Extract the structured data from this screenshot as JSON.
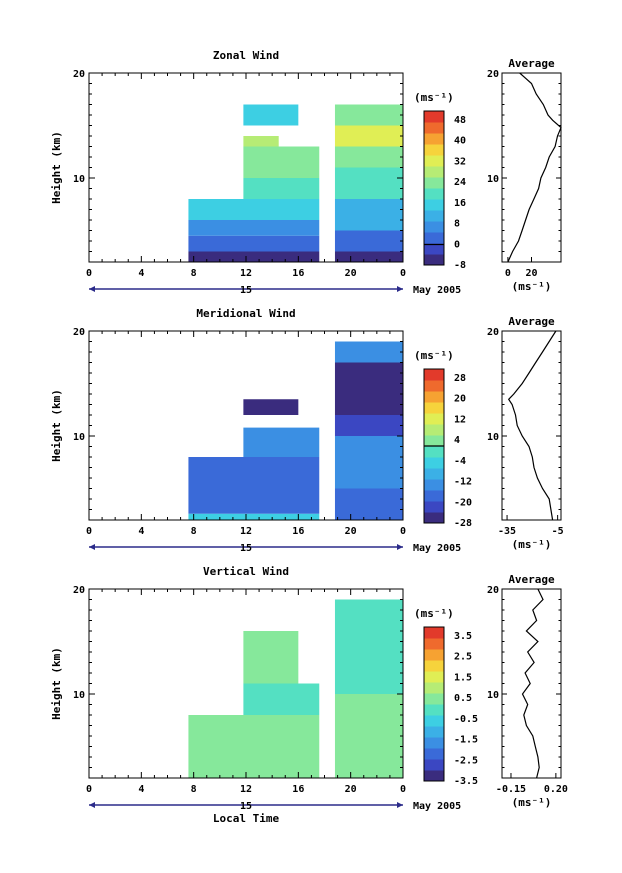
{
  "figure": {
    "xlabel": "Local Time",
    "date_label": "May 2005",
    "day_label": "15",
    "ylabel": "Height (km)",
    "unit_label": "(ms⁻¹)"
  },
  "colormap": [
    "#3a2c7e",
    "#3b47c2",
    "#3a6ad8",
    "#3b8fe3",
    "#3bb0e6",
    "#3dcfe3",
    "#54e0c2",
    "#86e89b",
    "#b6ec75",
    "#e0ee55",
    "#f6d33c",
    "#f6a232",
    "#ef6a2d",
    "#e23a2b"
  ],
  "chart_data": [
    {
      "type": "heatmap",
      "id": "zonal",
      "title": "Zonal Wind",
      "x_ticks": [
        "0",
        "4",
        "8",
        "12",
        "16",
        "20",
        "0"
      ],
      "x_tick_values": [
        0,
        4,
        8,
        12,
        16,
        20,
        24
      ],
      "y_ticks": [
        "20",
        "10"
      ],
      "y_tick_values": [
        20,
        10
      ],
      "ylim": [
        2,
        20
      ],
      "xlim": [
        0,
        24
      ],
      "colorbar_labels": [
        "48",
        "40",
        "32",
        "24",
        "16",
        "8",
        "0",
        "-8"
      ],
      "colorbar_range": [
        -8,
        52
      ],
      "zero_marker": true,
      "avg_title": "Average",
      "avg_xticks": [
        "0",
        "20"
      ],
      "avg_xtick_values": [
        0,
        20
      ],
      "avg_xlim": [
        -5,
        45
      ],
      "avg_profile": [
        [
          2,
          0
        ],
        [
          3,
          4
        ],
        [
          4,
          9
        ],
        [
          5,
          12
        ],
        [
          6,
          15
        ],
        [
          7,
          18
        ],
        [
          8,
          22
        ],
        [
          9,
          26
        ],
        [
          10,
          28
        ],
        [
          11,
          32
        ],
        [
          12,
          35
        ],
        [
          13,
          40
        ],
        [
          14,
          42
        ],
        [
          14.8,
          45
        ],
        [
          15.5,
          38
        ],
        [
          16,
          34
        ],
        [
          17,
          30
        ],
        [
          18,
          24
        ],
        [
          19,
          20
        ],
        [
          19.6,
          14
        ],
        [
          20,
          10
        ]
      ],
      "layers": [
        {
          "x": [
            7.6,
            17.6
          ],
          "y": [
            2,
            3
          ],
          "v": -6
        },
        {
          "x": [
            7.6,
            17.6
          ],
          "y": [
            3,
            4.5
          ],
          "v": 2
        },
        {
          "x": [
            7.6,
            17.6
          ],
          "y": [
            4.5,
            6
          ],
          "v": 8
        },
        {
          "x": [
            7.6,
            17.6
          ],
          "y": [
            6,
            8
          ],
          "v": 14
        },
        {
          "x": [
            11.8,
            17.6
          ],
          "y": [
            8,
            10
          ],
          "v": 18
        },
        {
          "x": [
            11.8,
            17.6
          ],
          "y": [
            10,
            13
          ],
          "v": 22
        },
        {
          "x": [
            11.8,
            14.5
          ],
          "y": [
            13,
            14
          ],
          "v": 30
        },
        {
          "x": [
            11.8,
            16.0
          ],
          "y": [
            15,
            17
          ],
          "v": 16
        },
        {
          "x": [
            18.8,
            24
          ],
          "y": [
            2,
            3
          ],
          "v": -6
        },
        {
          "x": [
            18.8,
            24
          ],
          "y": [
            3,
            5
          ],
          "v": 4
        },
        {
          "x": [
            18.8,
            24
          ],
          "y": [
            5,
            8
          ],
          "v": 10
        },
        {
          "x": [
            18.8,
            24
          ],
          "y": [
            8,
            11
          ],
          "v": 18
        },
        {
          "x": [
            18.8,
            24
          ],
          "y": [
            11,
            13
          ],
          "v": 26
        },
        {
          "x": [
            18.8,
            24
          ],
          "y": [
            13,
            15
          ],
          "v": 34
        },
        {
          "x": [
            18.8,
            24
          ],
          "y": [
            15,
            17
          ],
          "v": 24
        }
      ]
    },
    {
      "type": "heatmap",
      "id": "meridional",
      "title": "Meridional Wind",
      "x_ticks": [
        "0",
        "4",
        "8",
        "12",
        "16",
        "20",
        "0"
      ],
      "x_tick_values": [
        0,
        4,
        8,
        12,
        16,
        20,
        24
      ],
      "y_ticks": [
        "20",
        "10"
      ],
      "y_tick_values": [
        20,
        10
      ],
      "ylim": [
        2,
        20
      ],
      "xlim": [
        0,
        24
      ],
      "colorbar_labels": [
        "28",
        "20",
        "12",
        "4",
        "-4",
        "-12",
        "-20",
        "-28"
      ],
      "colorbar_range": [
        -32,
        32
      ],
      "zero_marker": true,
      "avg_title": "Average",
      "avg_xticks": [
        "-35",
        "-5"
      ],
      "avg_xtick_values": [
        -35,
        -5
      ],
      "avg_xlim": [
        -38,
        -3
      ],
      "avg_profile": [
        [
          2,
          -8
        ],
        [
          3,
          -9
        ],
        [
          4,
          -10
        ],
        [
          5,
          -14
        ],
        [
          6,
          -17
        ],
        [
          7,
          -19
        ],
        [
          8,
          -20
        ],
        [
          9,
          -22
        ],
        [
          10,
          -26
        ],
        [
          11,
          -29
        ],
        [
          12,
          -30
        ],
        [
          13,
          -32
        ],
        [
          13.5,
          -34
        ],
        [
          14,
          -31
        ],
        [
          15,
          -26
        ],
        [
          16,
          -22
        ],
        [
          17,
          -18
        ],
        [
          18,
          -14
        ],
        [
          19,
          -10
        ],
        [
          20,
          -6
        ]
      ],
      "layers": [
        {
          "x": [
            7.6,
            17.6
          ],
          "y": [
            2,
            2.6
          ],
          "v": -8
        },
        {
          "x": [
            7.6,
            17.6
          ],
          "y": [
            2.6,
            5
          ],
          "v": -20
        },
        {
          "x": [
            7.6,
            17.6
          ],
          "y": [
            5,
            8
          ],
          "v": -22
        },
        {
          "x": [
            11.8,
            17.6
          ],
          "y": [
            8,
            10.8
          ],
          "v": -18
        },
        {
          "x": [
            11.8,
            16.0
          ],
          "y": [
            12,
            13.5
          ],
          "v": -30
        },
        {
          "x": [
            18.8,
            24
          ],
          "y": [
            2,
            5
          ],
          "v": -22
        },
        {
          "x": [
            18.8,
            24
          ],
          "y": [
            5,
            10
          ],
          "v": -18
        },
        {
          "x": [
            18.8,
            24
          ],
          "y": [
            10,
            12
          ],
          "v": -24
        },
        {
          "x": [
            18.8,
            24
          ],
          "y": [
            12,
            14
          ],
          "v": -28
        },
        {
          "x": [
            18.8,
            24
          ],
          "y": [
            14,
            17
          ],
          "v": -30
        },
        {
          "x": [
            18.8,
            24
          ],
          "y": [
            17,
            19
          ],
          "v": -14
        }
      ]
    },
    {
      "type": "heatmap",
      "id": "vertical",
      "title": "Vertical Wind",
      "x_ticks": [
        "0",
        "4",
        "8",
        "12",
        "16",
        "20",
        "0"
      ],
      "x_tick_values": [
        0,
        4,
        8,
        12,
        16,
        20,
        24
      ],
      "y_ticks": [
        "20",
        "10"
      ],
      "y_tick_values": [
        20,
        10
      ],
      "ylim": [
        2,
        20
      ],
      "xlim": [
        0,
        24
      ],
      "colorbar_labels": [
        "3.5",
        "2.5",
        "1.5",
        "0.5",
        "-0.5",
        "-1.5",
        "-2.5",
        "-3.5"
      ],
      "colorbar_range": [
        -4,
        4
      ],
      "zero_marker": false,
      "avg_title": "Average",
      "avg_xticks": [
        "-0.15",
        "0.20"
      ],
      "avg_xtick_values": [
        -0.15,
        0.2
      ],
      "avg_xlim": [
        -0.22,
        0.24
      ],
      "avg_profile": [
        [
          2,
          0.05
        ],
        [
          3,
          0.07
        ],
        [
          4,
          0.06
        ],
        [
          5,
          0.04
        ],
        [
          6,
          0.02
        ],
        [
          7,
          -0.03
        ],
        [
          8,
          -0.05
        ],
        [
          9,
          -0.02
        ],
        [
          10,
          -0.06
        ],
        [
          11,
          0.0
        ],
        [
          12,
          -0.04
        ],
        [
          13,
          0.03
        ],
        [
          14,
          -0.02
        ],
        [
          15,
          0.06
        ],
        [
          16,
          -0.03
        ],
        [
          17,
          0.05
        ],
        [
          18,
          0.02
        ],
        [
          19,
          0.1
        ],
        [
          20,
          0.06
        ]
      ],
      "layers": [
        {
          "x": [
            7.6,
            17.6
          ],
          "y": [
            2,
            8
          ],
          "v": 0.4
        },
        {
          "x": [
            11.8,
            17.6
          ],
          "y": [
            8,
            11
          ],
          "v": -0.3
        },
        {
          "x": [
            11.8,
            16.0
          ],
          "y": [
            11,
            16
          ],
          "v": 0.0
        },
        {
          "x": [
            18.8,
            24
          ],
          "y": [
            2,
            10
          ],
          "v": 0.2
        },
        {
          "x": [
            18.8,
            24
          ],
          "y": [
            10,
            19
          ],
          "v": -0.4
        }
      ]
    }
  ]
}
